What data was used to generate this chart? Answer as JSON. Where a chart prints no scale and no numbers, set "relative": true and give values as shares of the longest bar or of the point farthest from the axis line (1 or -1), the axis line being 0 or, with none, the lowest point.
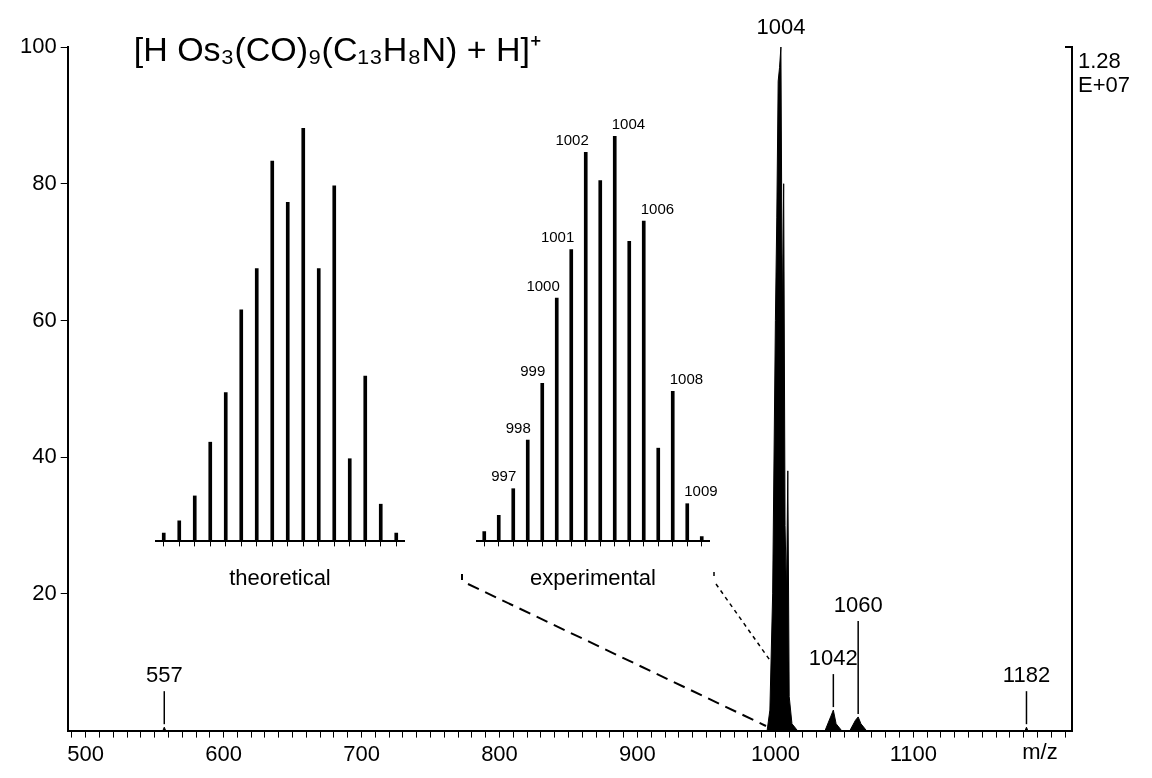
{
  "chart_data": [
    {
      "type": "area",
      "title": "[H Os₃(CO)₉(C₁₃H₈N) + H]⁺",
      "xlabel": "m/z",
      "color": "#000000",
      "x": [
        487,
        500,
        556,
        557,
        558,
        990,
        994,
        996,
        998,
        1000,
        1001,
        1002,
        1003,
        1004,
        1005,
        1006,
        1007,
        1008,
        1009,
        1010,
        1012,
        1016,
        1036,
        1040,
        1042,
        1044,
        1048,
        1054,
        1058,
        1060,
        1062,
        1066,
        1181,
        1182,
        1183,
        1215
      ],
      "values": [
        0,
        0,
        0,
        0.5,
        0,
        0,
        0,
        3,
        20,
        60,
        75,
        95,
        97,
        100,
        60,
        80,
        30,
        20,
        38,
        5,
        1,
        0,
        0,
        2,
        3,
        1,
        0,
        0,
        1.5,
        2,
        1,
        0,
        0,
        0.5,
        0,
        0
      ],
      "xlim": [
        487,
        1215
      ],
      "xticks": [
        {
          "value": 490,
          "label": null
        },
        500,
        {
          "value": 510,
          "label": null
        },
        {
          "value": 520,
          "label": null
        },
        {
          "value": 530,
          "label": null
        },
        {
          "value": 540,
          "label": null
        },
        {
          "value": 550,
          "label": null
        },
        {
          "value": 560,
          "label": null
        },
        {
          "value": 570,
          "label": null
        },
        {
          "value": 580,
          "label": null
        },
        {
          "value": 590,
          "label": null
        },
        600,
        {
          "value": 610,
          "label": null
        },
        {
          "value": 620,
          "label": null
        },
        {
          "value": 630,
          "label": null
        },
        {
          "value": 640,
          "label": null
        },
        {
          "value": 650,
          "label": null
        },
        {
          "value": 660,
          "label": null
        },
        {
          "value": 670,
          "label": null
        },
        {
          "value": 680,
          "label": null
        },
        {
          "value": 690,
          "label": null
        },
        700,
        {
          "value": 710,
          "label": null
        },
        {
          "value": 720,
          "label": null
        },
        {
          "value": 730,
          "label": null
        },
        {
          "value": 740,
          "label": null
        },
        {
          "value": 750,
          "label": null
        },
        {
          "value": 760,
          "label": null
        },
        {
          "value": 770,
          "label": null
        },
        {
          "value": 780,
          "label": null
        },
        {
          "value": 790,
          "label": null
        },
        800,
        {
          "value": 810,
          "label": null
        },
        {
          "value": 820,
          "label": null
        },
        {
          "value": 830,
          "label": null
        },
        {
          "value": 840,
          "label": null
        },
        {
          "value": 850,
          "label": null
        },
        {
          "value": 860,
          "label": null
        },
        {
          "value": 870,
          "label": null
        },
        {
          "value": 880,
          "label": null
        },
        {
          "value": 890,
          "label": null
        },
        900,
        {
          "value": 910,
          "label": null
        },
        {
          "value": 920,
          "label": null
        },
        {
          "value": 930,
          "label": null
        },
        {
          "value": 940,
          "label": null
        },
        {
          "value": 950,
          "label": null
        },
        {
          "value": 960,
          "label": null
        },
        {
          "value": 970,
          "label": null
        },
        {
          "value": 980,
          "label": null
        },
        {
          "value": 990,
          "label": null
        },
        1000,
        {
          "value": 1010,
          "label": null
        },
        {
          "value": 1020,
          "label": null
        },
        {
          "value": 1030,
          "label": null
        },
        {
          "value": 1040,
          "label": null
        },
        {
          "value": 1050,
          "label": null
        },
        {
          "value": 1060,
          "label": null
        },
        {
          "value": 1070,
          "label": null
        },
        {
          "value": 1080,
          "label": null
        },
        {
          "value": 1090,
          "label": null
        },
        1100,
        {
          "value": 1110,
          "label": null
        },
        {
          "value": 1120,
          "label": null
        },
        {
          "value": 1130,
          "label": null
        },
        {
          "value": 1140,
          "label": null
        },
        {
          "value": 1150,
          "label": null
        },
        {
          "value": 1160,
          "label": null
        },
        {
          "value": 1170,
          "label": null
        },
        {
          "value": 1180,
          "label": null
        },
        {
          "value": 1190,
          "label": null
        },
        {
          "value": 1200,
          "label": null
        },
        {
          "value": 1210,
          "label": null
        }
      ],
      "ylim": [
        0,
        100
      ],
      "yticks": [
        20,
        40,
        60,
        80,
        100
      ],
      "annotations": [
        {
          "text": "1004",
          "x": 1004,
          "y": 100
        },
        {
          "text": "557",
          "x": 557,
          "y": 0.5
        },
        {
          "text": "1042",
          "x": 1042,
          "y": 3
        },
        {
          "text": "1060",
          "x": 1060,
          "y": 2
        },
        {
          "text": "1182",
          "x": 1182,
          "y": 0.5
        },
        "1.28 E+07"
      ]
    },
    {
      "type": "bar",
      "relative": true,
      "xlabel": "theoretical",
      "color": "#000000",
      "categories": [
        null,
        null,
        null,
        null,
        null,
        null,
        null,
        null,
        null,
        null,
        null,
        null,
        null,
        null,
        null,
        null
      ],
      "values": [
        0.02,
        0.05,
        0.11,
        0.24,
        0.36,
        0.56,
        0.66,
        0.92,
        0.82,
        1,
        0.66,
        0.86,
        0.2,
        0.4,
        0.09,
        0.02
      ]
    },
    {
      "type": "bar",
      "relative": true,
      "xlabel": "experimental",
      "color": "#000000",
      "categories": [
        null,
        null,
        null,
        null,
        null,
        null,
        null,
        null,
        null,
        null,
        null,
        null,
        null,
        null,
        null,
        null
      ],
      "values": [
        0.024,
        0.064,
        0.13,
        0.25,
        0.39,
        0.6,
        0.72,
        0.96,
        0.89,
        1,
        0.74,
        0.79,
        0.23,
        0.37,
        0.093,
        0.012
      ],
      "annotations": [
        "997",
        "998",
        "999",
        "1000",
        "1001",
        "1002",
        "1004",
        "1006",
        "1008",
        "1009"
      ]
    }
  ]
}
